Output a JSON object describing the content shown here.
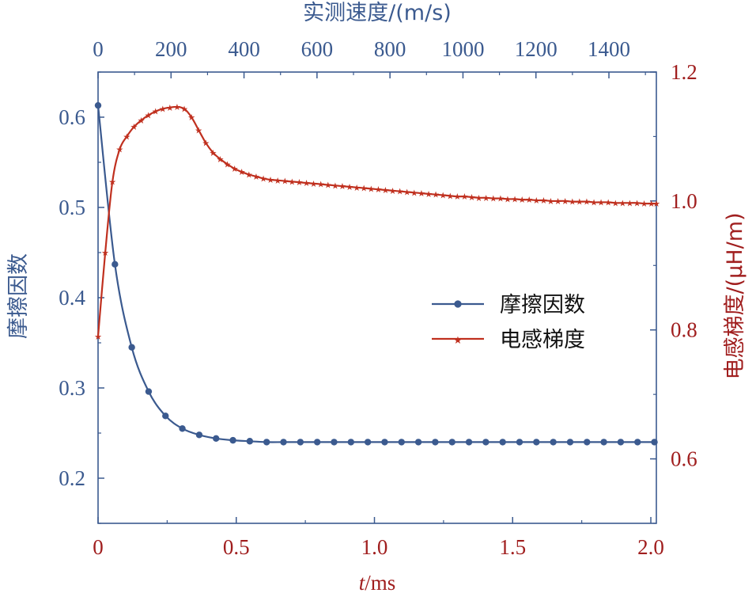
{
  "colors": {
    "friction": "#3b5a8f",
    "inductance": "#c0301f",
    "frame": "#3b5a8f",
    "bottom_axis": "#a01e1e",
    "right_axis": "#a01e1e",
    "top_axis": "#3b5a8f",
    "left_axis": "#3b5a8f"
  },
  "chart_data": {
    "type": "line",
    "xlabel_italic": "t",
    "xlabel_rest": "/ms",
    "x_ticks": [
      "0",
      "0.5",
      "1.0",
      "1.5",
      "2.0"
    ],
    "xlim": [
      0,
      2.02
    ],
    "top_xlabel": "实测速度/(m/s)",
    "top_ticks": [
      "0",
      "200",
      "400",
      "600",
      "800",
      "1000",
      "1200",
      "1400"
    ],
    "top_xlim": [
      0,
      1530
    ],
    "ylabel_left": "摩擦因数",
    "yleft_ticks": [
      "0.2",
      "0.3",
      "0.4",
      "0.5",
      "0.6"
    ],
    "ylim_left": [
      0.15,
      0.65
    ],
    "ylabel_right": "电感梯度/(μH/m)",
    "yright_ticks": [
      "0.6",
      "0.8",
      "1.0",
      "1.2"
    ],
    "ylim_right": [
      0.5,
      1.2
    ],
    "legend": {
      "position": "center-right"
    },
    "series": [
      {
        "name": "摩擦因数",
        "axis": "left",
        "marker": "circle",
        "x": [
          0,
          0.061,
          0.122,
          0.183,
          0.244,
          0.305,
          0.366,
          0.427,
          0.488,
          0.549,
          0.61,
          0.671,
          0.732,
          0.793,
          0.854,
          0.915,
          0.976,
          1.037,
          1.098,
          1.159,
          1.22,
          1.281,
          1.342,
          1.403,
          1.464,
          1.525,
          1.586,
          1.647,
          1.708,
          1.769,
          1.83,
          1.891,
          1.952,
          2.013
        ],
        "y": [
          0.613,
          0.437,
          0.345,
          0.296,
          0.269,
          0.255,
          0.248,
          0.244,
          0.242,
          0.241,
          0.24,
          0.24,
          0.24,
          0.24,
          0.24,
          0.24,
          0.24,
          0.24,
          0.24,
          0.24,
          0.24,
          0.24,
          0.24,
          0.24,
          0.24,
          0.24,
          0.24,
          0.24,
          0.24,
          0.24,
          0.24,
          0.24,
          0.24,
          0.24
        ]
      },
      {
        "name": "电感梯度",
        "axis": "right",
        "marker": "star",
        "x": [
          0,
          0.026,
          0.052,
          0.078,
          0.104,
          0.13,
          0.156,
          0.182,
          0.208,
          0.234,
          0.26,
          0.286,
          0.312,
          0.338,
          0.364,
          0.39,
          0.416,
          0.442,
          0.468,
          0.494,
          0.52,
          0.546,
          0.572,
          0.598,
          0.624,
          0.65,
          0.676,
          0.702,
          0.728,
          0.754,
          0.78,
          0.806,
          0.832,
          0.858,
          0.884,
          0.91,
          0.936,
          0.962,
          0.988,
          1.014,
          1.04,
          1.066,
          1.092,
          1.118,
          1.144,
          1.17,
          1.196,
          1.222,
          1.248,
          1.274,
          1.3,
          1.326,
          1.352,
          1.378,
          1.404,
          1.43,
          1.456,
          1.482,
          1.508,
          1.534,
          1.56,
          1.586,
          1.612,
          1.638,
          1.664,
          1.69,
          1.716,
          1.742,
          1.768,
          1.794,
          1.82,
          1.846,
          1.872,
          1.898,
          1.924,
          1.95,
          1.976,
          2.002,
          2.02
        ],
        "y": [
          0.79,
          0.92,
          1.03,
          1.08,
          1.1,
          1.115,
          1.125,
          1.133,
          1.139,
          1.143,
          1.145,
          1.146,
          1.143,
          1.13,
          1.11,
          1.09,
          1.075,
          1.065,
          1.057,
          1.05,
          1.045,
          1.041,
          1.038,
          1.035,
          1.033,
          1.032,
          1.031,
          1.03,
          1.029,
          1.028,
          1.027,
          1.026,
          1.025,
          1.024,
          1.023,
          1.022,
          1.021,
          1.02,
          1.019,
          1.018,
          1.017,
          1.016,
          1.015,
          1.014,
          1.013,
          1.012,
          1.011,
          1.01,
          1.009,
          1.008,
          1.007,
          1.007,
          1.006,
          1.005,
          1.005,
          1.004,
          1.004,
          1.003,
          1.003,
          1.002,
          1.002,
          1.001,
          1.001,
          1.0,
          1.0,
          1.0,
          0.999,
          0.999,
          0.999,
          0.998,
          0.998,
          0.998,
          0.997,
          0.997,
          0.997,
          0.997,
          0.996,
          0.996,
          0.996
        ]
      }
    ]
  }
}
